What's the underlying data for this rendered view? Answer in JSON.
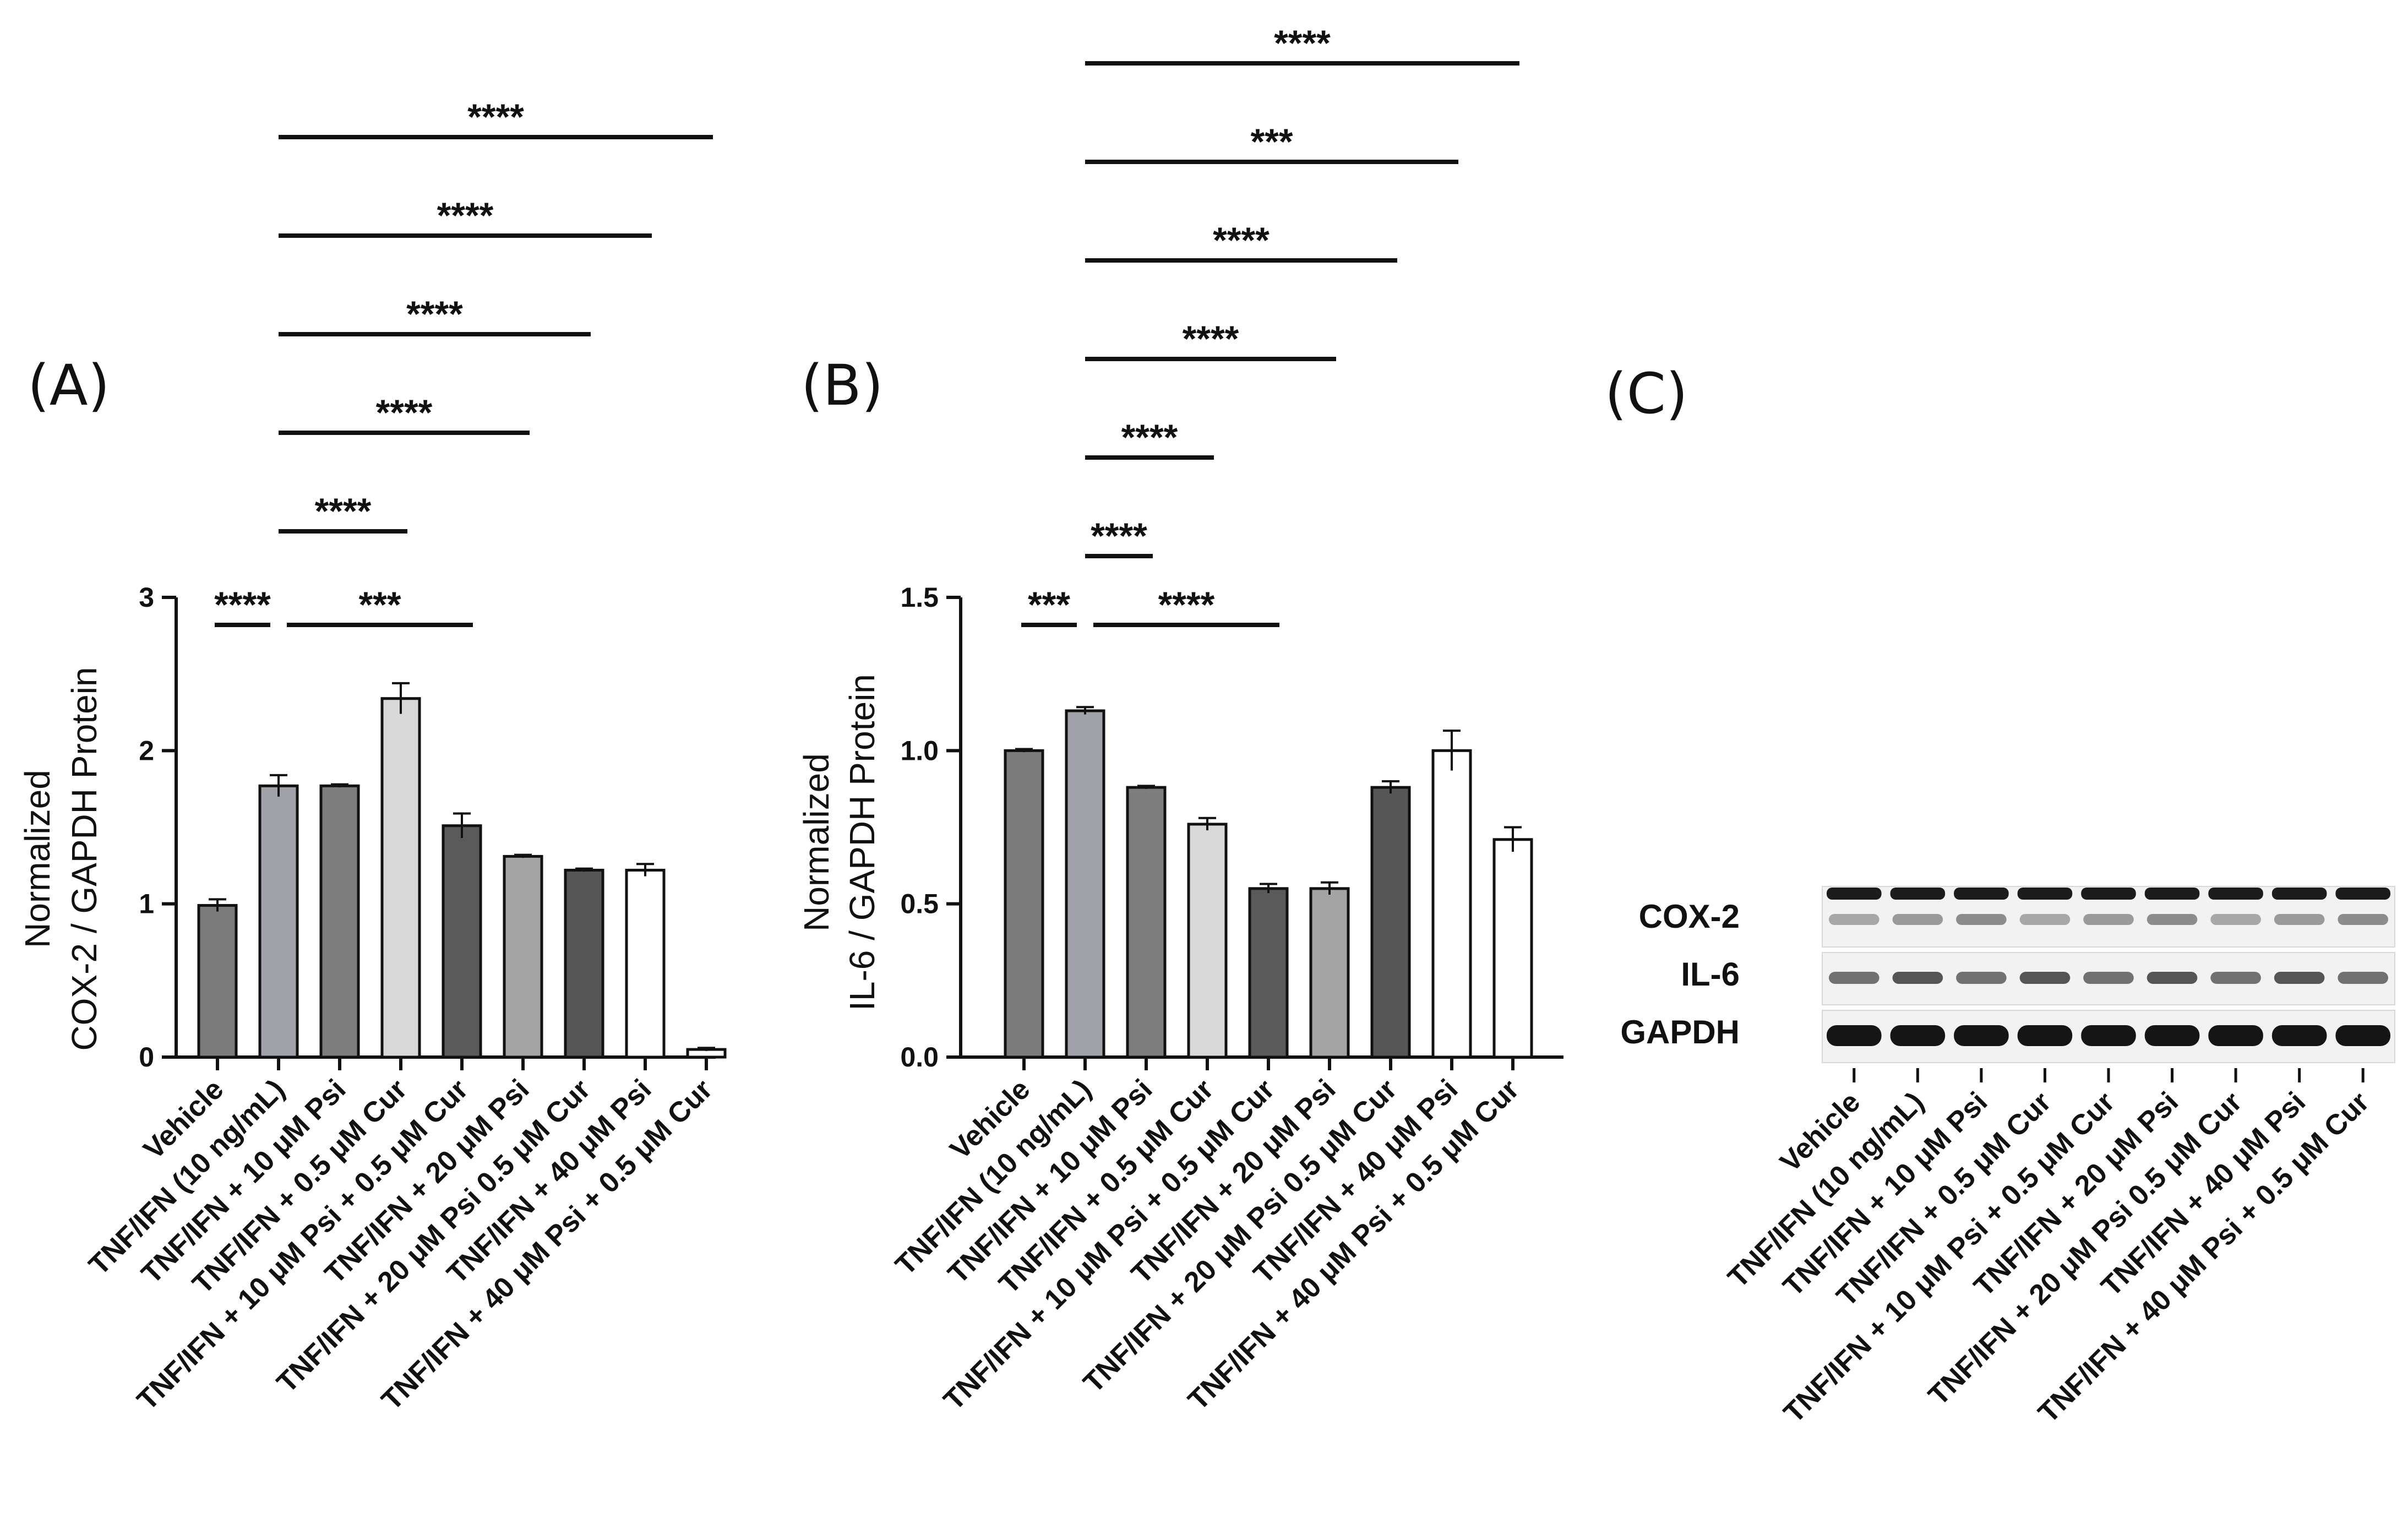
{
  "colors": {
    "axis": "#111111",
    "bars": [
      "#7b7b7b",
      "#a1a1a9",
      "#7d7d7d",
      "#d9d9d9",
      "#5a5a5a",
      "#a4a4a4",
      "#565656",
      "#ffffff",
      "#ffffff"
    ],
    "blot_bg": "#f2f2f2",
    "band": "#1c1c1c"
  },
  "chart_data": [
    {
      "panel": "(A)",
      "type": "bar",
      "ylabel_line1": "Normalized",
      "ylabel_line2": "COX-2 / GAPDH Protein",
      "ylim": [
        0,
        3
      ],
      "yticks": [
        "0",
        "1",
        "2",
        "3"
      ],
      "categories": [
        "Vehicle",
        "TNF/IFN (10 ng/mL)",
        "TNF/IFN + 10 μM Psi",
        "TNF/IFN + 0.5 μM Cur",
        "TNF/IFN + 10 μM Psi + 0.5 μM Cur",
        "TNF/IFN + 20 μM Psi",
        "TNF/IFN + 20 μM Psi 0.5 μM Cur",
        "TNF/IFN + 40 μM Psi",
        "TNF/IFN + 40 μM Psi + 0.5 μM Cur"
      ],
      "values": [
        0.99,
        1.77,
        1.77,
        2.34,
        1.51,
        1.31,
        1.22,
        1.22,
        0.05
      ],
      "errors": [
        0.04,
        0.07,
        0.01,
        0.1,
        0.08,
        0.01,
        0.01,
        0.04,
        0.01
      ],
      "significance": [
        {
          "from": 0,
          "to": 1,
          "label": "****"
        },
        {
          "from": 1,
          "to": 4,
          "label": "***"
        },
        {
          "from": 1,
          "to": 3,
          "label": "****"
        },
        {
          "from": 1,
          "to": 5,
          "label": "****"
        },
        {
          "from": 1,
          "to": 6,
          "label": "****"
        },
        {
          "from": 1,
          "to": 7,
          "label": "****"
        },
        {
          "from": 1,
          "to": 8,
          "label": "****"
        }
      ]
    },
    {
      "panel": "(B)",
      "type": "bar",
      "ylabel_line1": "Normalized",
      "ylabel_line2": "IL-6 / GAPDH Protein",
      "ylim": [
        0,
        1.5
      ],
      "yticks": [
        "0.0",
        "0.5",
        "1.0",
        "1.5"
      ],
      "categories": [
        "Vehicle",
        "TNF/IFN (10 ng/mL)",
        "TNF/IFN + 10 μM Psi",
        "TNF/IFN + 0.5 μM Cur",
        "TNF/IFN + 10 μM Psi + 0.5 μM Cur",
        "TNF/IFN + 20 μM Psi",
        "TNF/IFN + 20 μM Psi 0.5 μM Cur",
        "TNF/IFN + 40 μM Psi",
        "TNF/IFN + 40 μM Psi + 0.5 μM Cur"
      ],
      "values": [
        1.0,
        1.13,
        0.88,
        0.76,
        0.55,
        0.55,
        0.88,
        1.0,
        0.71
      ],
      "errors": [
        0.005,
        0.012,
        0.005,
        0.02,
        0.015,
        0.02,
        0.02,
        0.065,
        0.04
      ],
      "significance": [
        {
          "from": 0,
          "to": 1,
          "label": "***"
        },
        {
          "from": 1,
          "to": 4,
          "label": "****"
        },
        {
          "from": 1,
          "to": 2,
          "label": "****"
        },
        {
          "from": 1,
          "to": 3,
          "label": "****"
        },
        {
          "from": 1,
          "to": 5,
          "label": "****"
        },
        {
          "from": 1,
          "to": 6,
          "label": "****"
        },
        {
          "from": 1,
          "to": 7,
          "label": "***"
        },
        {
          "from": 1,
          "to": 8,
          "label": "****"
        }
      ]
    }
  ],
  "blot": {
    "panel": "(C)",
    "rows": [
      "COX-2",
      "IL-6",
      "GAPDH"
    ],
    "lanes": [
      "Vehicle",
      "TNF/IFN (10 ng/mL)",
      "TNF/IFN + 10 μM Psi",
      "TNF/IFN + 0.5 μM Cur",
      "TNF/IFN + 10 μM Psi + 0.5 μM Cur",
      "TNF/IFN + 20 μM Psi",
      "TNF/IFN + 20 μM Psi 0.5 μM Cur",
      "TNF/IFN + 40 μM Psi",
      "TNF/IFN + 40 μM Psi + 0.5 μM Cur"
    ]
  }
}
